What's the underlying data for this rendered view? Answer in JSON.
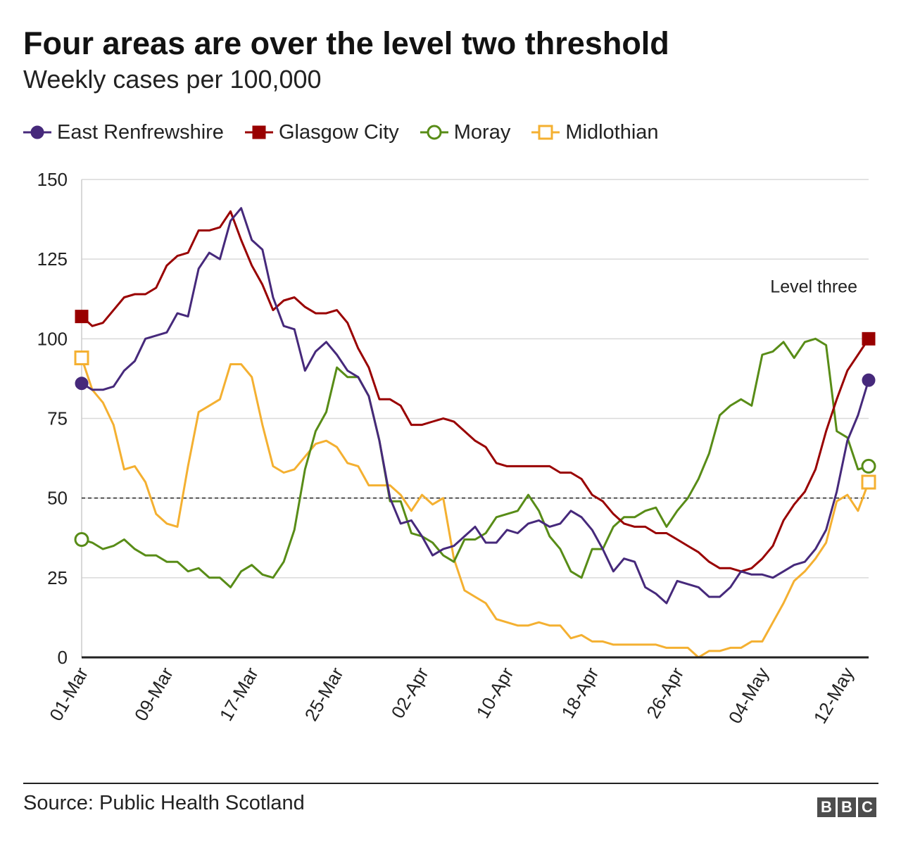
{
  "title": "Four areas are over the level two threshold",
  "subtitle": "Weekly cases per 100,000",
  "source": "Source: Public Health Scotland",
  "logo": [
    "B",
    "B",
    "C"
  ],
  "chart_data": {
    "type": "line",
    "x_start": "01-Mar",
    "x_ticks": [
      "01-Mar",
      "09-Mar",
      "17-Mar",
      "25-Mar",
      "02-Apr",
      "10-Apr",
      "18-Apr",
      "26-Apr",
      "04-May",
      "12-May"
    ],
    "ylim": [
      0,
      150
    ],
    "yticks": [
      0,
      25,
      50,
      75,
      100,
      125,
      150
    ],
    "grid": true,
    "legend_position": "top",
    "threshold": {
      "value": 50,
      "style": "dashed"
    },
    "annotations": [
      {
        "text": "Level three",
        "at_y": 100
      }
    ],
    "series": [
      {
        "name": "East Renfrewshire",
        "color": "#46297b",
        "marker": "circle",
        "marker_fill": "filled",
        "values": [
          86,
          84,
          84,
          85,
          90,
          93,
          100,
          101,
          102,
          108,
          107,
          122,
          127,
          125,
          137,
          141,
          131,
          128,
          113,
          104,
          103,
          90,
          96,
          99,
          95,
          90,
          88,
          82,
          68,
          50,
          42,
          43,
          38,
          32,
          34,
          35,
          38,
          41,
          36,
          36,
          40,
          39,
          42,
          43,
          41,
          42,
          46,
          44,
          40,
          34,
          27,
          31,
          30,
          22,
          20,
          17,
          24,
          23,
          22,
          19,
          19,
          22,
          27,
          26,
          26,
          25,
          27,
          29,
          30,
          34,
          40,
          52,
          68,
          76,
          87
        ]
      },
      {
        "name": "Glasgow City",
        "color": "#990000",
        "marker": "square",
        "marker_fill": "filled",
        "values": [
          107,
          104,
          105,
          109,
          113,
          114,
          114,
          116,
          123,
          126,
          127,
          134,
          134,
          135,
          140,
          131,
          123,
          117,
          109,
          112,
          113,
          110,
          108,
          108,
          109,
          105,
          97,
          91,
          81,
          81,
          79,
          73,
          73,
          74,
          75,
          74,
          71,
          68,
          66,
          61,
          60,
          60,
          60,
          60,
          60,
          58,
          58,
          56,
          51,
          49,
          45,
          42,
          41,
          41,
          39,
          39,
          37,
          35,
          33,
          30,
          28,
          28,
          27,
          28,
          31,
          35,
          43,
          48,
          52,
          59,
          71,
          81,
          90,
          95,
          100
        ]
      },
      {
        "name": "Moray",
        "color": "#588c17",
        "marker": "circle",
        "marker_fill": "hollow",
        "values": [
          37,
          36,
          34,
          35,
          37,
          34,
          32,
          32,
          30,
          30,
          27,
          28,
          25,
          25,
          22,
          27,
          29,
          26,
          25,
          30,
          40,
          59,
          71,
          77,
          91,
          88,
          88,
          82,
          68,
          49,
          49,
          39,
          38,
          36,
          32,
          30,
          37,
          37,
          39,
          44,
          45,
          46,
          51,
          46,
          38,
          34,
          27,
          25,
          34,
          34,
          41,
          44,
          44,
          46,
          47,
          41,
          46,
          50,
          56,
          64,
          76,
          79,
          81,
          79,
          95,
          96,
          99,
          94,
          99,
          100,
          98,
          71,
          69,
          59,
          60
        ]
      },
      {
        "name": "Midlothian",
        "color": "#f4b031",
        "marker": "square",
        "marker_fill": "hollow",
        "values": [
          94,
          84,
          80,
          73,
          59,
          60,
          55,
          45,
          42,
          41,
          60,
          77,
          79,
          81,
          92,
          92,
          88,
          73,
          60,
          58,
          59,
          63,
          67,
          68,
          66,
          61,
          60,
          54,
          54,
          54,
          51,
          46,
          51,
          48,
          50,
          31,
          21,
          19,
          17,
          12,
          11,
          10,
          10,
          11,
          10,
          10,
          6,
          7,
          5,
          5,
          4,
          4,
          4,
          4,
          4,
          3,
          3,
          3,
          0,
          2,
          2,
          3,
          3,
          5,
          5,
          11,
          17,
          24,
          27,
          31,
          36,
          49,
          51,
          46,
          55
        ]
      }
    ]
  }
}
